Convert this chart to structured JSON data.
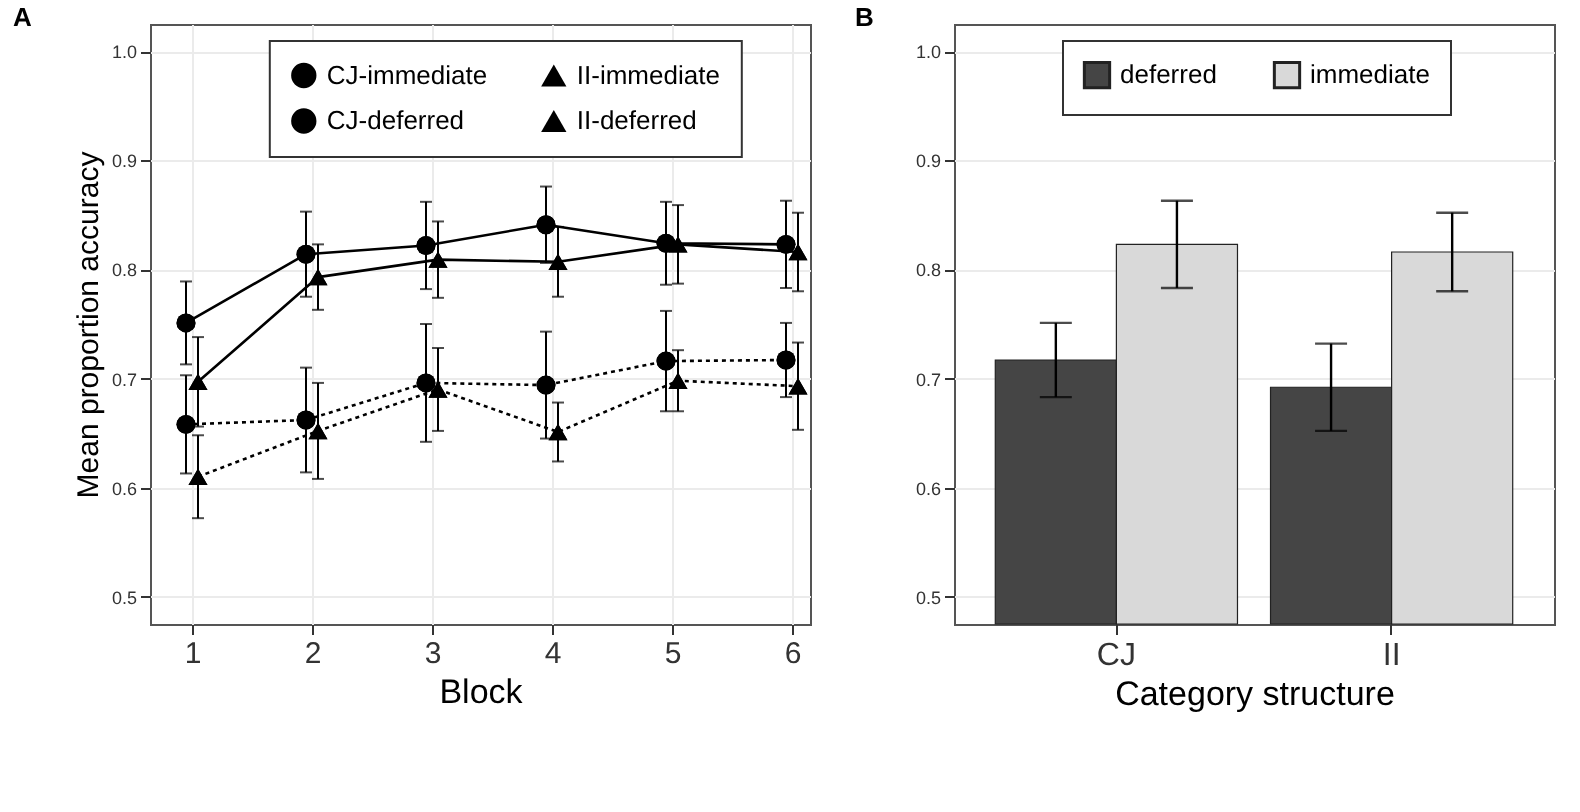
{
  "chart_data": [
    {
      "type": "line",
      "title": "A",
      "xlabel": "Block",
      "ylabel": "Mean proportion accuracy",
      "xlim": [
        0.65,
        6.15
      ],
      "xticks": [
        1,
        2,
        3,
        4,
        5,
        6
      ],
      "ylim": [
        0.475,
        1.025
      ],
      "yticks": [
        0.5,
        0.6,
        0.7,
        0.8,
        0.9,
        {
          "value": 1,
          "label": "1.0"
        }
      ],
      "grid": true,
      "legend": "top",
      "series": [
        {
          "name": "CJ-immediate",
          "color": "#000000",
          "marker": "circle",
          "line_style": "solid",
          "x": [
            0.95,
            1.95,
            2.95,
            3.95,
            4.95,
            5.95
          ],
          "values": [
            0.751,
            0.814,
            0.822,
            0.841,
            0.824,
            0.823
          ],
          "errors": [
            0.038,
            0.039,
            0.04,
            0.035,
            0.038,
            0.04
          ]
        },
        {
          "name": "II-immediate",
          "color": "#000000",
          "marker": "triangle",
          "line_style": "solid",
          "x": [
            1.05,
            2.05,
            3.05,
            4.05,
            5.05,
            6.05
          ],
          "values": [
            0.697,
            0.793,
            0.809,
            0.807,
            0.823,
            0.816
          ],
          "errors": [
            0.041,
            0.03,
            0.035,
            0.032,
            0.036,
            0.036
          ]
        },
        {
          "name": "CJ-deferred",
          "color": "#000000",
          "marker": "circle",
          "line_style": "dotted",
          "x": [
            0.95,
            1.95,
            2.95,
            3.95,
            4.95,
            5.95
          ],
          "values": [
            0.658,
            0.662,
            0.696,
            0.694,
            0.716,
            0.717
          ],
          "errors": [
            0.045,
            0.048,
            0.054,
            0.049,
            0.046,
            0.034
          ]
        },
        {
          "name": "II-deferred",
          "color": "#000000",
          "marker": "triangle",
          "line_style": "dotted",
          "x": [
            1.05,
            2.05,
            3.05,
            4.05,
            5.05,
            6.05
          ],
          "values": [
            0.61,
            0.652,
            0.69,
            0.651,
            0.698,
            0.693
          ],
          "errors": [
            0.038,
            0.044,
            0.038,
            0.027,
            0.028,
            0.04
          ]
        }
      ]
    },
    {
      "type": "bar",
      "title": "B",
      "xlabel": "Category structure",
      "categories": [
        "CJ",
        "II"
      ],
      "ylim": [
        0.475,
        1.025
      ],
      "yticks": [
        0.5,
        0.6,
        0.7,
        0.8,
        0.9,
        {
          "value": 1,
          "label": "1.0"
        }
      ],
      "grid": true,
      "legend": "top",
      "series": [
        {
          "name": "deferred",
          "color": "#454545",
          "values": [
            0.717,
            0.692
          ],
          "errors": [
            0.034,
            0.04
          ]
        },
        {
          "name": "immediate",
          "color": "#d9d9d9",
          "values": [
            0.823,
            0.816
          ],
          "errors": [
            0.04,
            0.036
          ]
        }
      ]
    }
  ]
}
